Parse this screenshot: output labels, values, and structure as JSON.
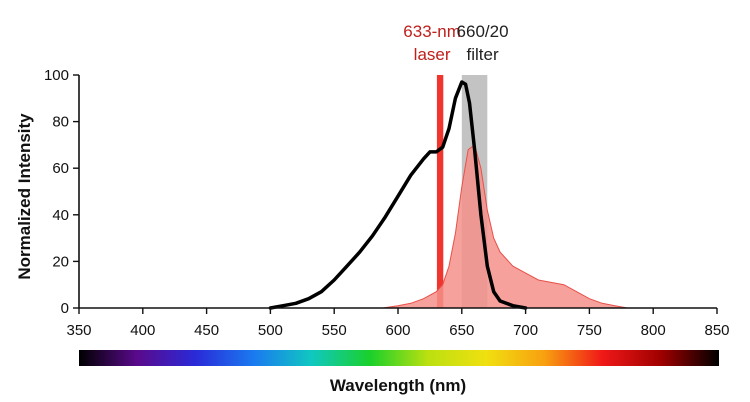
{
  "chart_data": {
    "type": "area",
    "title": "",
    "xlabel": "Wavelength (nm)",
    "ylabel": "Normalized Intensity",
    "xlim": [
      350,
      850
    ],
    "ylim": [
      0,
      100
    ],
    "x_ticks": [
      "350",
      "400",
      "450",
      "500",
      "550",
      "600",
      "650",
      "700",
      "750",
      "800",
      "850"
    ],
    "y_ticks": [
      "0",
      "20",
      "40",
      "60",
      "80",
      "100"
    ],
    "grid": false,
    "annotations": [
      {
        "id": "laser",
        "lines": [
          "633-nm",
          "laser"
        ],
        "color": "#c0201c",
        "band_center": 633,
        "band_width": 5,
        "band_color": "#ee2a22"
      },
      {
        "id": "filter",
        "lines": [
          "660/20",
          "filter"
        ],
        "color": "#222222",
        "band_center": 660,
        "band_width": 20,
        "band_color": "#b9b9b9"
      }
    ],
    "series": [
      {
        "style": "line",
        "color": "#000000",
        "x": [
          500,
          510,
          520,
          530,
          540,
          550,
          560,
          570,
          580,
          590,
          600,
          610,
          620,
          625,
          630,
          635,
          640,
          645,
          650,
          653,
          656,
          660,
          665,
          670,
          675,
          680,
          690,
          700
        ],
        "values": [
          0,
          1,
          2,
          4,
          7,
          12,
          18,
          24,
          31,
          39,
          48,
          57,
          64,
          67,
          67,
          69,
          77,
          90,
          97,
          96,
          88,
          68,
          40,
          18,
          7,
          3,
          1,
          0
        ]
      },
      {
        "style": "area",
        "color": "#f4908a",
        "stroke": "#e8504a",
        "x": [
          588,
          600,
          610,
          620,
          630,
          635,
          640,
          645,
          650,
          655,
          660,
          665,
          670,
          675,
          680,
          690,
          700,
          710,
          720,
          730,
          740,
          750,
          760,
          770,
          780,
          790
        ],
        "values": [
          0,
          1,
          2,
          4,
          7,
          10,
          18,
          32,
          52,
          68,
          70,
          60,
          42,
          30,
          24,
          18,
          15,
          12,
          11,
          10,
          7,
          4,
          2,
          1,
          0,
          0
        ]
      }
    ],
    "spectrum_bar_colors": [
      "#000000",
      "#5a0a8c",
      "#2a2ad8",
      "#1a7af0",
      "#10c8c0",
      "#1ad02a",
      "#bbe010",
      "#f0e010",
      "#f8a010",
      "#f01818",
      "#a00000",
      "#000000"
    ]
  }
}
